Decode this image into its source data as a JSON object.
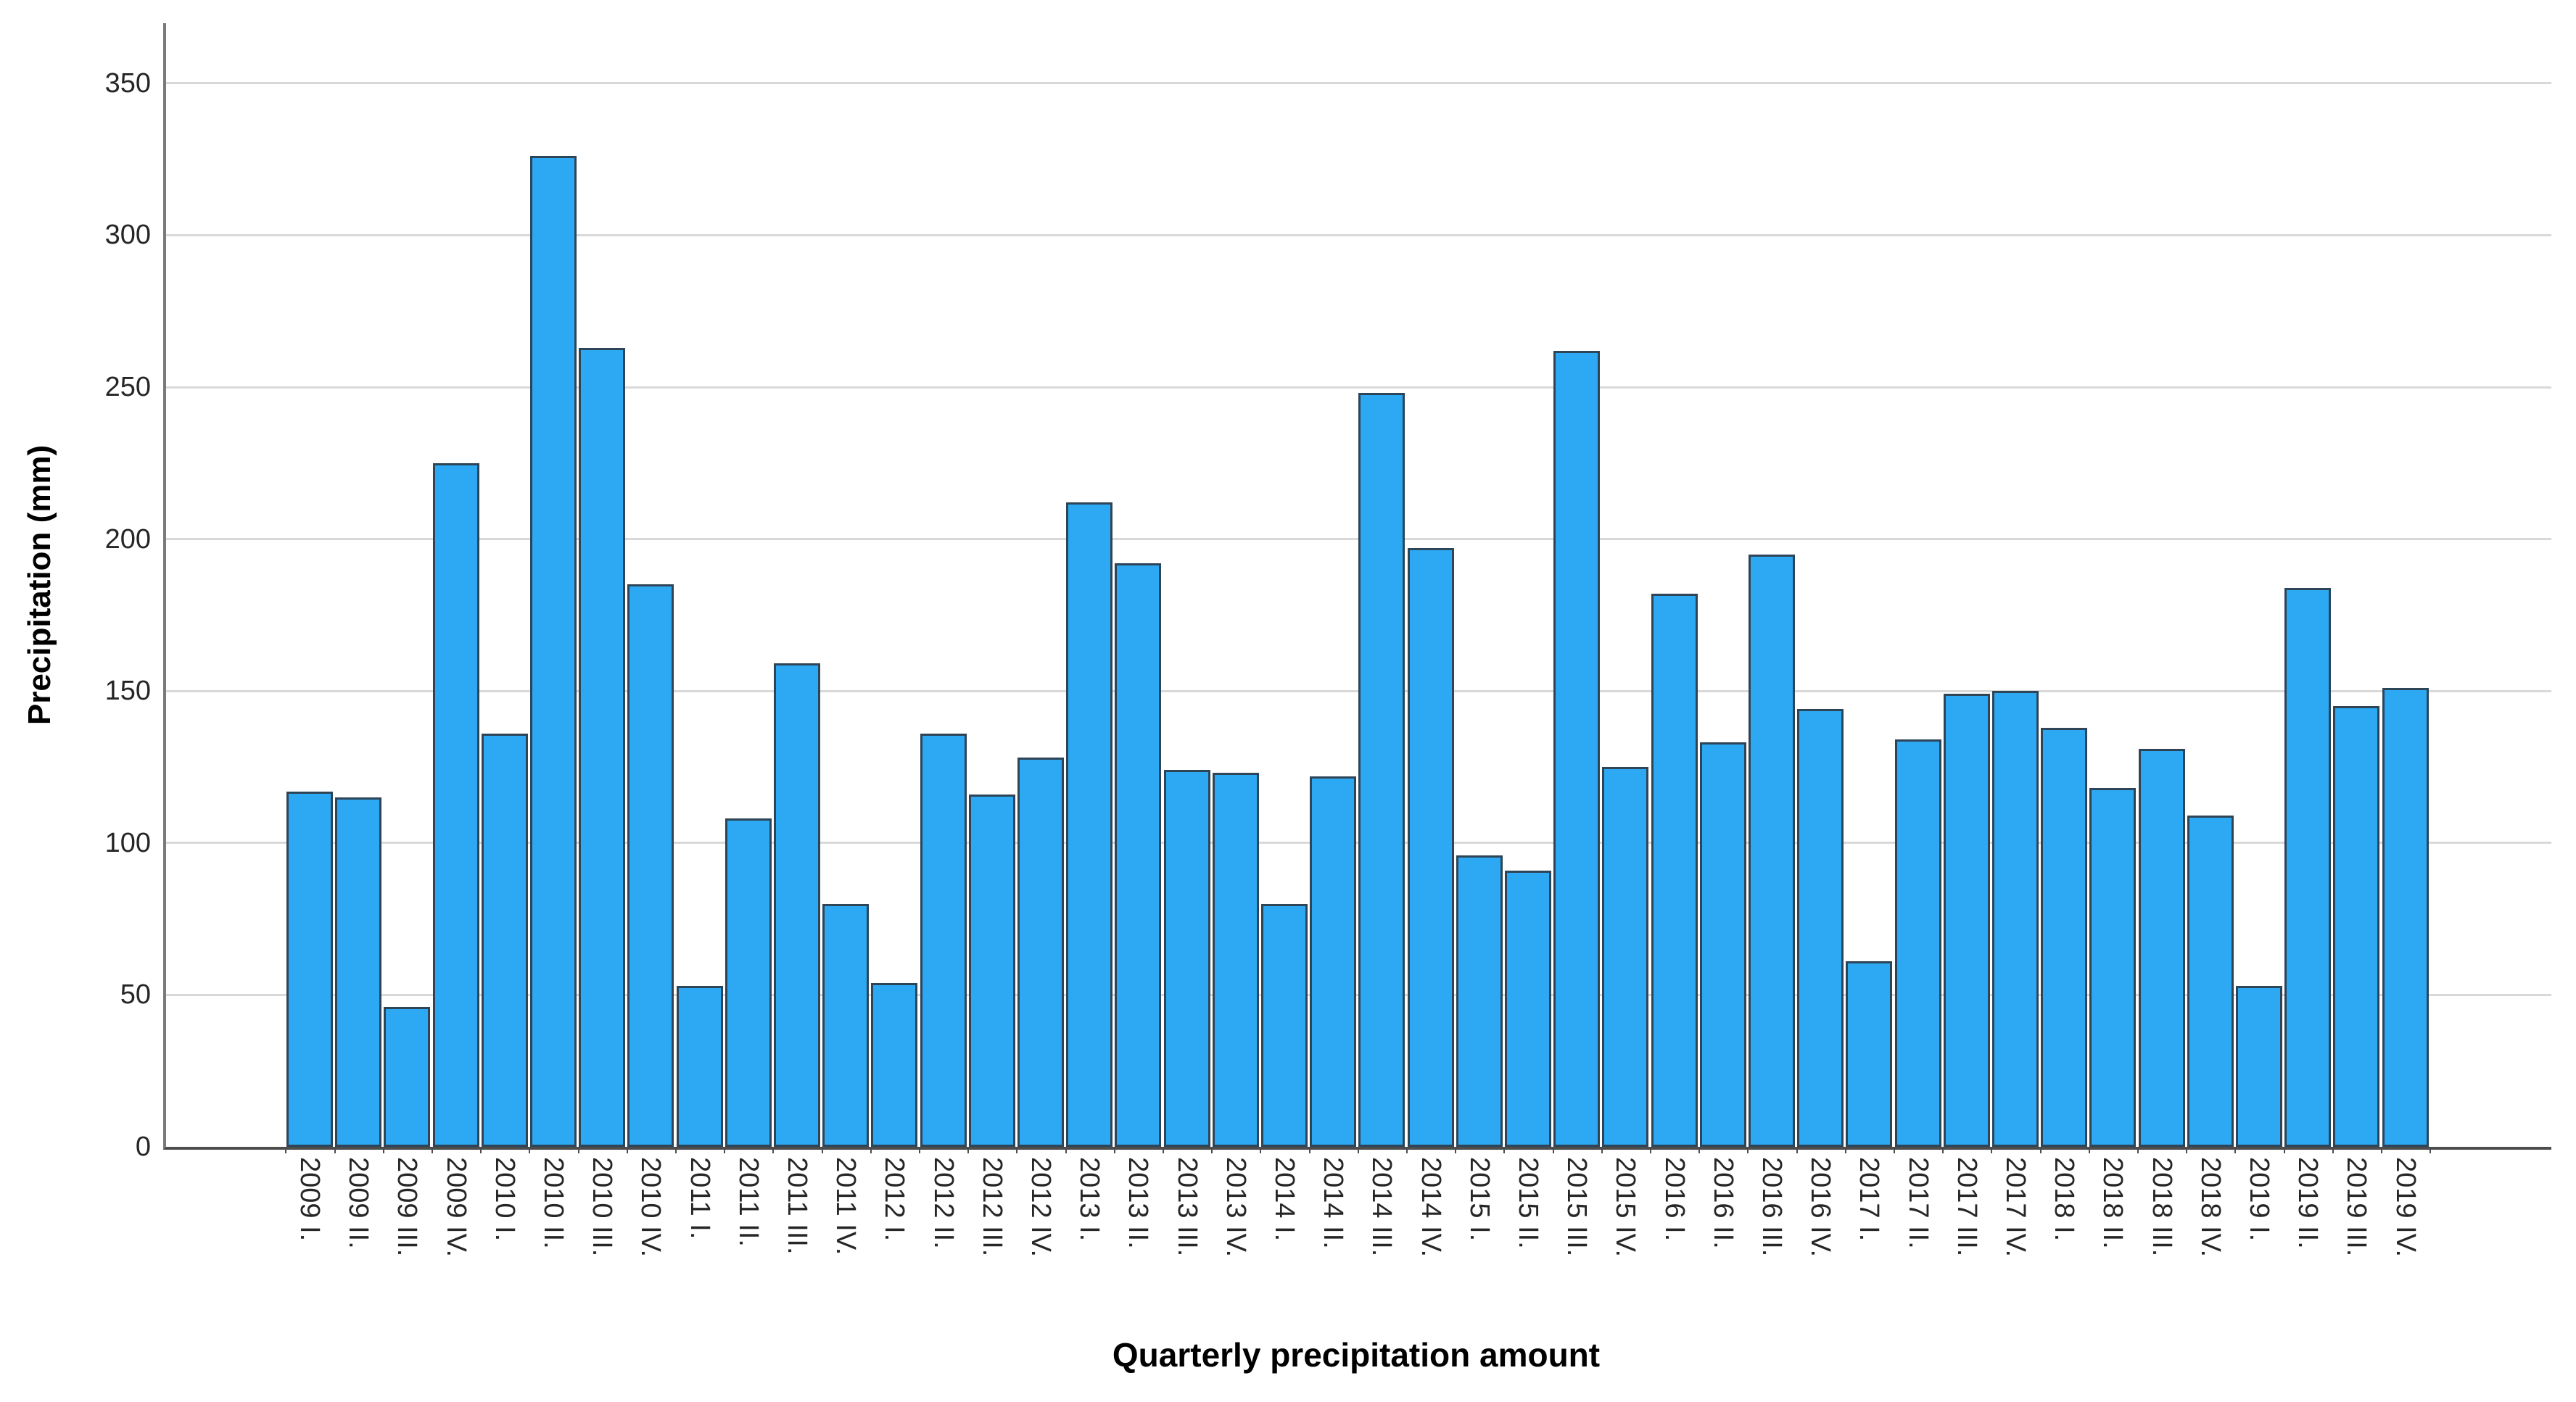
{
  "chart_data": {
    "type": "bar",
    "title": "",
    "xlabel": "Quarterly precipitation amount",
    "ylabel": "Precipitation (mm)",
    "ylim": [
      0,
      350
    ],
    "yticks": [
      0,
      50,
      100,
      150,
      200,
      250,
      300,
      350
    ],
    "grid": "horizontal",
    "legend": "none",
    "categories": [
      "2009 I.",
      "2009 II.",
      "2009 III.",
      "2009 IV.",
      "2010 I.",
      "2010 II.",
      "2010 III.",
      "2010 IV.",
      "2011 I.",
      "2011 II.",
      "2011 III.",
      "2011 IV.",
      "2012 I.",
      "2012 II.",
      "2012 III.",
      "2012 IV.",
      "2013 I.",
      "2013 II.",
      "2013 III.",
      "2013 IV.",
      "2014 I.",
      "2014 II.",
      "2014 III.",
      "2014 IV.",
      "2015 I.",
      "2015 II.",
      "2015 III.",
      "2015 IV.",
      "2016 I.",
      "2016 II.",
      "2016 III.",
      "2016 IV.",
      "2017 I.",
      "2017 II.",
      "2017 III.",
      "2017 IV.",
      "2018 I.",
      "2018 II.",
      "2018 III.",
      "2018 IV.",
      "2019 I.",
      "2019 II.",
      "2019 III.",
      "2019 IV."
    ],
    "values": [
      117,
      115,
      46,
      225,
      136,
      326,
      263,
      185,
      53,
      108,
      159,
      80,
      54,
      136,
      116,
      128,
      212,
      192,
      124,
      123,
      80,
      122,
      248,
      197,
      96,
      91,
      262,
      125,
      182,
      133,
      195,
      144,
      61,
      134,
      149,
      150,
      138,
      118,
      131,
      109,
      53,
      184,
      145,
      151
    ],
    "colors": {
      "bar_fill": "#2CA9F2",
      "bar_border": "#2E4457",
      "gridline": "#D9D9D9",
      "axis_line": "#4D4D4D",
      "spine": "#7A7A7A",
      "tick_label": "#262626"
    }
  }
}
